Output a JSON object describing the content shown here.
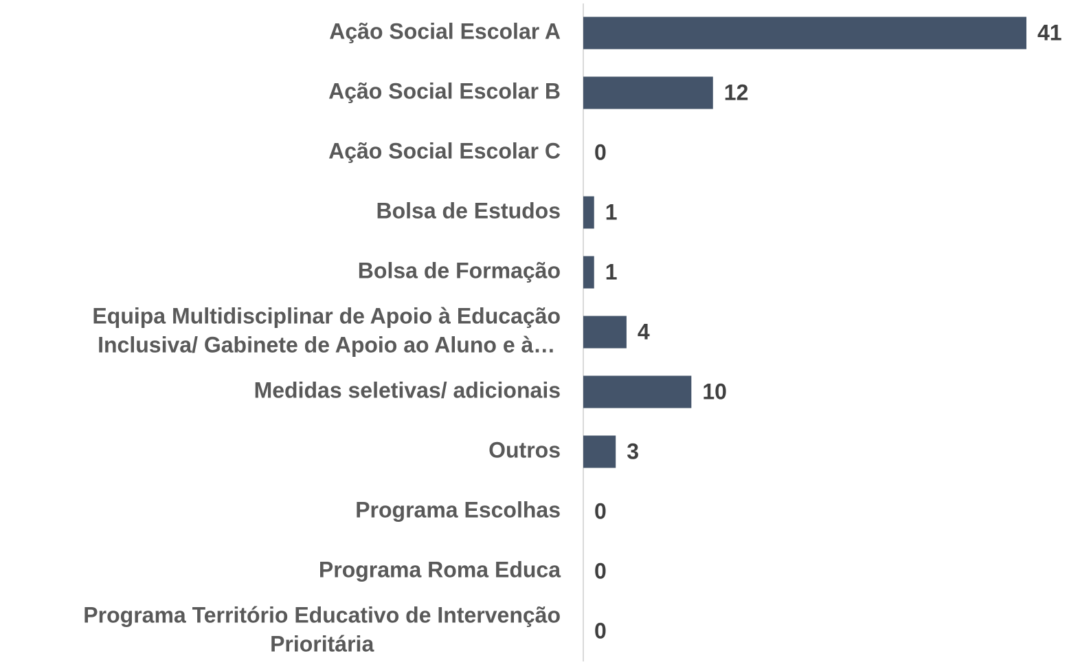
{
  "chart_data": {
    "type": "barh",
    "categories": [
      "Ação Social Escolar A",
      "Ação Social Escolar B",
      "Ação Social Escolar C",
      "Bolsa de Estudos",
      "Bolsa de Formação",
      [
        "Equipa Multidisciplinar de Apoio à Educação",
        "Inclusiva/ Gabinete de Apoio ao Aluno e à…"
      ],
      "Medidas seletivas/ adicionais",
      "Outros",
      "Programa Escolhas",
      "Programa Roma Educa",
      [
        "Programa Território Educativo de Intervenção",
        "Prioritária"
      ]
    ],
    "values": [
      41,
      12,
      0,
      1,
      1,
      4,
      10,
      3,
      0,
      0,
      0
    ],
    "color": "#44546a"
  }
}
